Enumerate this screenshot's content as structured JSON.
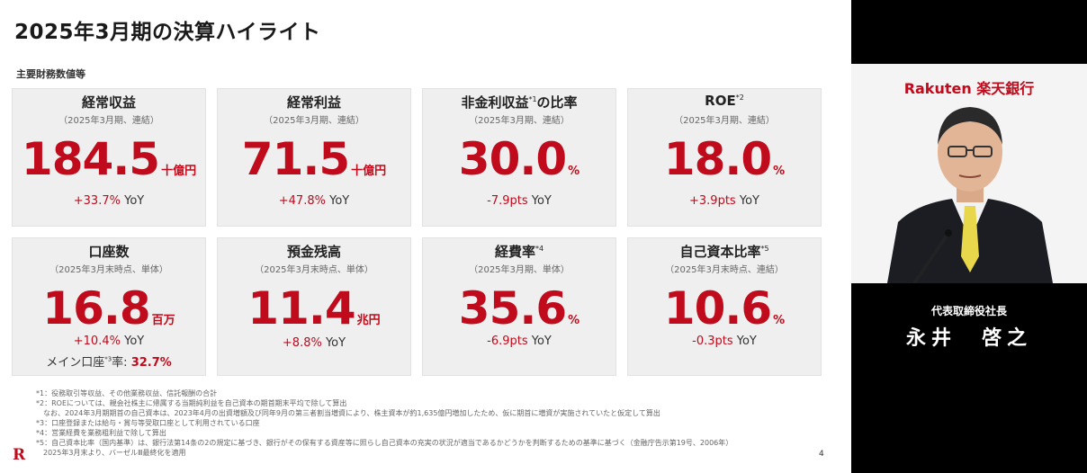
{
  "slide": {
    "title": "2025年3月期の決算ハイライト",
    "subtitle": "主要財務数値等",
    "page_number": "4",
    "logo": "R"
  },
  "cards": [
    {
      "title": "経常収益",
      "sup": "",
      "sub": "（2025年3月期、連結）",
      "value": "184.5",
      "unit": "十億円",
      "yoy_pct": "+33.7%",
      "yoy_label": " YoY"
    },
    {
      "title": "経常利益",
      "sup": "",
      "sub": "（2025年3月期、連結）",
      "value": "71.5",
      "unit": "十億円",
      "yoy_pct": "+47.8%",
      "yoy_label": " YoY"
    },
    {
      "title": "非金利収益",
      "sup": "*1",
      "title_suffix": "の比率",
      "sub": "（2025年3月期、連結）",
      "value": "30.0",
      "unit": "%",
      "yoy_pct": "-7.9pts",
      "yoy_label": " YoY"
    },
    {
      "title": "ROE",
      "sup": "*2",
      "title_suffix": "",
      "sub": "（2025年3月期、連結）",
      "value": "18.0",
      "unit": "%",
      "yoy_pct": "+3.9pts",
      "yoy_label": " YoY"
    },
    {
      "title": "口座数",
      "sup": "",
      "sub": "（2025年3月末時点、単体）",
      "value": "16.8",
      "unit": "百万",
      "yoy_pct": "+10.4%",
      "yoy_label": " YoY",
      "extra_label": "メイン口座",
      "extra_sup": "*3",
      "extra_label2": "率: ",
      "extra_pct": "32.7%"
    },
    {
      "title": "預金残高",
      "sup": "",
      "sub": "（2025年3月末時点、単体）",
      "value": "11.4",
      "unit": "兆円",
      "yoy_pct": "+8.8%",
      "yoy_label": " YoY"
    },
    {
      "title": "経費率",
      "sup": "*4",
      "title_suffix": "",
      "sub": "（2025年3月期、単体）",
      "value": "35.6",
      "unit": "%",
      "yoy_pct": "-6.9pts",
      "yoy_label": " YoY"
    },
    {
      "title": "自己資本比率",
      "sup": "*5",
      "title_suffix": "",
      "sub": "（2025年3月末時点、連結）",
      "value": "10.6",
      "unit": "%",
      "yoy_pct": "-0.3pts",
      "yoy_label": " YoY"
    }
  ],
  "notes": [
    "*1：役務取引等収益、その他業務収益、信託報酬の合計",
    "*2：ROEについては、親会社株主に帰属する当期純利益を自己資本の期首期末平均で除して算出",
    "　なお、2024年3月期期首の自己資本は、2023年4月の出資増額及び同年9月の第三者割当増資により、株主資本が約1,635億円増加したため、仮に期首に増資が実施されていたと仮定して算出",
    "*3：口座登録または給与・賞与等受取口座として利用されている口座",
    "*4：営業経費を業務粗利益で除して算出",
    "*5：自己資本比率（国内基準）は、銀行法第14条の2の規定に基づき、銀行がその保有する資産等に照らし自己資本の充実の状況が適当であるかどうかを判断するための基準に基づく（金融庁告示第19号、2006年）",
    "　2025年3月末より、バーゼルⅢ最終化を適用"
  ],
  "video": {
    "brand": "Rakuten 楽天銀行",
    "role": "代表取締役社長",
    "name": "永井　啓之"
  },
  "colors": {
    "accent": "#bf0b1c",
    "card_bg": "#efefef",
    "video_bg": "#000000"
  }
}
